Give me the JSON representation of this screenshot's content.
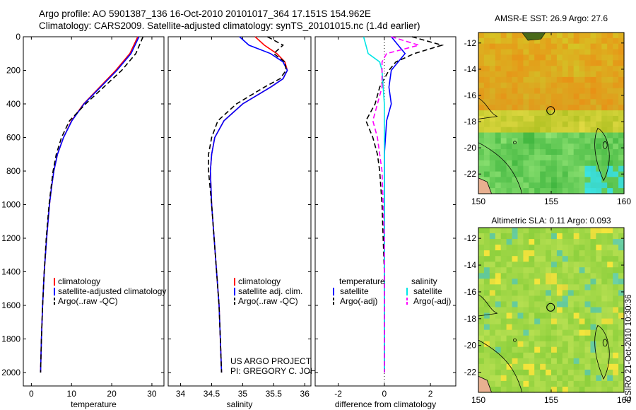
{
  "header": {
    "line1": "Argo profile: AO 5901387_136 16-Oct-2010 20101017_364 17.151S 154.962E",
    "line2": "Climatology: CARS2009. Satellite-adjusted climatology: synTS_20101015.nc (1.4d earlier)"
  },
  "credit": "CSIRO 21-Oct-2010 10:30:36",
  "colors": {
    "red": "#ff0000",
    "blue": "#0000ff",
    "black": "#000000",
    "cyan": "#00e5e5",
    "magenta": "#ff00ff"
  },
  "chart_data": [
    {
      "type": "line",
      "xlabel": "temperature",
      "ylabel": "",
      "xlim": [
        -2,
        33
      ],
      "ylim": [
        2080,
        0
      ],
      "xticks": [
        0,
        10,
        20,
        30
      ],
      "yticks": [
        0,
        200,
        400,
        600,
        800,
        1000,
        1200,
        1400,
        1600,
        1800,
        2000
      ],
      "depth": [
        0,
        100,
        200,
        300,
        400,
        500,
        600,
        700,
        800,
        900,
        1000,
        1200,
        1400,
        1600,
        1800,
        2000
      ],
      "series": [
        {
          "name": "climatology",
          "color": "#ff0000",
          "dash": "",
          "values": [
            26.5,
            24.5,
            21.0,
            17.0,
            13.0,
            10.0,
            8.0,
            6.5,
            5.6,
            5.0,
            4.5,
            3.8,
            3.2,
            2.8,
            2.5,
            2.3
          ]
        },
        {
          "name": "satellite-adjusted climatology",
          "color": "#0000ff",
          "dash": "",
          "values": [
            26.8,
            24.8,
            21.3,
            17.2,
            13.1,
            10.1,
            8.0,
            6.5,
            5.6,
            5.0,
            4.5,
            3.8,
            3.2,
            2.8,
            2.5,
            2.3
          ]
        },
        {
          "name": "Argo(..raw -QC)",
          "color": "#000000",
          "dash": "7,4",
          "values": [
            27.8,
            26.0,
            22.5,
            18.0,
            13.5,
            9.5,
            7.5,
            6.2,
            5.4,
            4.9,
            4.4,
            3.7,
            3.2,
            2.8,
            2.5,
            2.3
          ]
        }
      ],
      "legend": [
        "climatology",
        "satellite-adjusted climatology",
        "Argo(..raw -QC)"
      ]
    },
    {
      "type": "line",
      "xlabel": "salinity",
      "ylabel": "",
      "xlim": [
        33.8,
        36.1
      ],
      "ylim": [
        2080,
        0
      ],
      "xticks": [
        34,
        34.5,
        35,
        35.5,
        36
      ],
      "depth": [
        0,
        50,
        100,
        150,
        200,
        250,
        300,
        400,
        500,
        600,
        700,
        800,
        1000,
        1200,
        1400,
        1600,
        1800,
        2000
      ],
      "series": [
        {
          "name": "climatology",
          "color": "#ff0000",
          "dash": "",
          "values": [
            35.2,
            35.35,
            35.55,
            35.68,
            35.72,
            35.65,
            35.45,
            35.0,
            34.7,
            34.55,
            34.5,
            34.48,
            34.5,
            34.54,
            34.58,
            34.62,
            34.64,
            34.66
          ]
        },
        {
          "name": "satellite adj. clim.",
          "color": "#0000ff",
          "dash": "",
          "values": [
            34.95,
            35.1,
            35.45,
            35.65,
            35.72,
            35.65,
            35.45,
            35.0,
            34.7,
            34.55,
            34.5,
            34.48,
            34.5,
            34.54,
            34.58,
            34.62,
            34.64,
            34.66
          ]
        },
        {
          "name": "Argo(..raw -QC)",
          "color": "#000000",
          "dash": "7,4",
          "values": [
            35.4,
            35.65,
            35.5,
            35.68,
            35.7,
            35.6,
            35.35,
            34.9,
            34.6,
            34.5,
            34.45,
            34.45,
            34.5,
            34.54,
            34.58,
            34.62,
            34.64,
            34.66
          ]
        }
      ],
      "legend": [
        "climatology",
        "satellite adj. clim.",
        "Argo(..raw -QC)"
      ],
      "annotation": [
        "US ARGO PROJECT",
        "PI: GREGORY C. JOHNSON"
      ]
    },
    {
      "type": "line",
      "xlabel": "difference from climatology",
      "ylabel": "",
      "xlim": [
        -3.0,
        3.1
      ],
      "ylim": [
        2080,
        0
      ],
      "xticks": [
        -2,
        0,
        2
      ],
      "depth": [
        0,
        50,
        100,
        150,
        200,
        300,
        400,
        500,
        600,
        700,
        800,
        1000,
        1200,
        1400,
        1600,
        1800,
        2000
      ],
      "series": [
        {
          "name": "temperature satellite",
          "color": "#0000ff",
          "dash": "",
          "values": [
            0.3,
            0.6,
            0.9,
            0.6,
            0.3,
            0.2,
            0.3,
            0.1,
            0.05,
            0.0,
            0.0,
            0.0,
            0.0,
            0.0,
            0.0,
            0.0,
            0.0
          ]
        },
        {
          "name": "temperature Argo(-adj)",
          "color": "#000000",
          "dash": "7,4",
          "values": [
            1.2,
            2.5,
            1.3,
            0.5,
            0.2,
            -0.2,
            -0.4,
            -0.8,
            -0.5,
            -0.3,
            -0.2,
            -0.1,
            -0.05,
            0.0,
            0.0,
            0.0,
            0.0
          ]
        },
        {
          "name": "salinity satellite",
          "color": "#00e5e5",
          "dash": "",
          "values": [
            -0.9,
            -0.8,
            -0.7,
            -0.2,
            -0.1,
            -0.05,
            0.0,
            0.0,
            0.0,
            0.0,
            0.0,
            0.0,
            0.0,
            0.0,
            0.0,
            0.0,
            0.0
          ]
        },
        {
          "name": "salinity Argo(-adj)",
          "color": "#ff00ff",
          "dash": "7,4",
          "values": [
            0.3,
            1.5,
            0.1,
            -0.1,
            -0.1,
            -0.1,
            -0.3,
            -0.5,
            -0.3,
            -0.2,
            -0.1,
            -0.05,
            0.0,
            0.0,
            0.0,
            0.0,
            0.0
          ]
        }
      ],
      "legend_headers": [
        "temperature",
        "salinity"
      ],
      "legend": [
        "satellite",
        "Argo(-adj)",
        "satellite",
        "Argo(-adj)"
      ]
    },
    {
      "type": "heatmap",
      "title": "AMSR-E SST: 26.9 Argo: 27.6",
      "xlim": [
        150,
        160
      ],
      "ylim": [
        -23.5,
        -11.2
      ],
      "xticks": [
        150,
        155,
        160
      ],
      "yticks": [
        -12,
        -14,
        -16,
        -18,
        -20,
        -22
      ],
      "marker": {
        "lon": 154.962,
        "lat": -17.151
      },
      "colormap": "warm"
    },
    {
      "type": "heatmap",
      "title": "Altimetric SLA: 0.11 Argo: 0.093",
      "xlim": [
        150,
        160
      ],
      "ylim": [
        -23.5,
        -11.2
      ],
      "xticks": [
        150,
        155,
        160
      ],
      "yticks": [
        -12,
        -14,
        -16,
        -18,
        -20,
        -22
      ],
      "marker": {
        "lon": 154.962,
        "lat": -17.151
      },
      "colormap": "green"
    }
  ]
}
